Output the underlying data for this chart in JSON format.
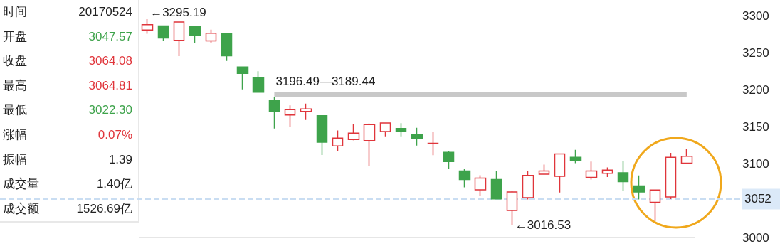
{
  "chart_data": {
    "type": "candlestick",
    "categories": [
      null,
      null,
      null,
      null,
      null,
      null,
      null,
      null,
      null,
      null,
      null,
      null,
      null,
      null,
      null,
      null,
      null,
      null,
      null,
      null,
      null,
      null,
      null,
      null,
      null,
      null,
      null,
      null,
      null,
      null,
      null,
      null,
      null,
      null,
      null
    ],
    "ohlc": [
      [
        3280.6,
        3295.19,
        3275.4,
        3287.8
      ],
      [
        3286.1,
        3286.1,
        3265.9,
        3269.6
      ],
      [
        3266.7,
        3292,
        3245.1,
        3291.3
      ],
      [
        3284.9,
        3285.5,
        3262.9,
        3273.3
      ],
      [
        3265.9,
        3281.1,
        3262.4,
        3276.3
      ],
      [
        3276.3,
        3276.3,
        3238.6,
        3245.6
      ],
      [
        3230.6,
        3230.6,
        3200.3,
        3221.9
      ],
      [
        3216.1,
        3224.8,
        3196.49,
        3196.5
      ],
      [
        3185.8,
        3189.44,
        3147.4,
        3170.5
      ],
      [
        3165.6,
        3178.6,
        3149.1,
        3172.8
      ],
      [
        3170.4,
        3180.9,
        3158.9,
        3173.7
      ],
      [
        3164.7,
        3164.7,
        3111.6,
        3128.9
      ],
      [
        3123.7,
        3144.8,
        3117.3,
        3134.4
      ],
      [
        3132.4,
        3153.2,
        3131.5,
        3141.1
      ],
      [
        3130.9,
        3154.1,
        3096.9,
        3152.6
      ],
      [
        3143.3,
        3155.5,
        3136.7,
        3154.9
      ],
      [
        3147.4,
        3154.6,
        3136.7,
        3143.3
      ],
      [
        3138.7,
        3148.3,
        3124.3,
        3134.4
      ],
      [
        3126.6,
        3143.3,
        3111.3,
        3127.5
      ],
      [
        3115.1,
        3117.3,
        3092.5,
        3102.6
      ],
      [
        3089.9,
        3092.5,
        3067.9,
        3078.3
      ],
      [
        3064.5,
        3084.1,
        3056.7,
        3080.4
      ],
      [
        3078.3,
        3089.9,
        3052.1,
        3052.1
      ],
      [
        3036.5,
        3063.1,
        3016.53,
        3061.6
      ],
      [
        3053.8,
        3090.5,
        3051.5,
        3083.9
      ],
      [
        3085.6,
        3098.6,
        3085,
        3089.9
      ],
      [
        3082.7,
        3113,
        3060.7,
        3113
      ],
      [
        3108.4,
        3118.5,
        3100.6,
        3103.5
      ],
      [
        3081.3,
        3102.6,
        3078.3,
        3089.9
      ],
      [
        3086.7,
        3094.8,
        3081.8,
        3091.1
      ],
      [
        3087.6,
        3103.5,
        3063.1,
        3075.5
      ],
      [
        3069.7,
        3083.9,
        3051.5,
        3061.6
      ],
      [
        3047.57,
        3064.81,
        3022.3,
        3064.08
      ],
      [
        3054.9,
        3114.5,
        3052,
        3108.4
      ],
      [
        3100.6,
        3120.3,
        3100.6,
        3109.9
      ]
    ],
    "colors": [
      "#e0353b",
      "#3ea34b",
      "#e0353b",
      "#3ea34b",
      "#e0353b",
      "#3ea34b",
      "#3ea34b",
      "#3ea34b",
      "#3ea34b",
      "#e0353b",
      "#e0353b",
      "#3ea34b",
      "#e0353b",
      "#e0353b",
      "#e0353b",
      "#e0353b",
      "#3ea34b",
      "#3ea34b",
      "#e0353b",
      "#3ea34b",
      "#3ea34b",
      "#e0353b",
      "#3ea34b",
      "#e0353b",
      "#e0353b",
      "#e0353b",
      "#e0353b",
      "#3ea34b",
      "#e0353b",
      "#e0353b",
      "#3ea34b",
      "#3ea34b",
      "#e0353b",
      "#e0353b",
      "#e0353b"
    ],
    "ylim": [
      3000,
      3300
    ],
    "yticks": [
      3000,
      3100,
      3150,
      3200,
      3250,
      3300
    ],
    "grid": "y",
    "tick_labels": "y",
    "bands": [
      {
        "axis": "y",
        "from": 3189.44,
        "to": 3196.49,
        "label": "3196.49—3189.44",
        "color": "#c8c8c8"
      }
    ],
    "ref_lines": [
      {
        "axis": "y",
        "value": 3052,
        "label": "3052",
        "color": "#c9ddf2",
        "line_style": "dashed"
      }
    ],
    "annotations": [
      "时间 20170524",
      "开盘 3047.57",
      "收盘 3064.08",
      "最高 3064.81",
      "最低 3022.30",
      "涨幅 0.07%",
      "振幅 1.39",
      "成交量 1.40亿",
      "成交额 1526.69亿",
      "←3295.19",
      "←3016.53"
    ]
  }
}
